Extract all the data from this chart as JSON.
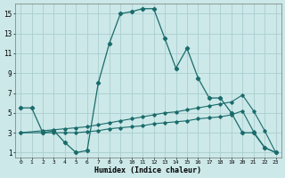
{
  "title": "",
  "xlabel": "Humidex (Indice chaleur)",
  "xlim": [
    -0.5,
    23.5
  ],
  "ylim": [
    0.5,
    16
  ],
  "xticks": [
    0,
    1,
    2,
    3,
    4,
    5,
    6,
    7,
    8,
    9,
    10,
    11,
    12,
    13,
    14,
    15,
    16,
    17,
    18,
    19,
    20,
    21,
    22,
    23
  ],
  "yticks": [
    1,
    3,
    5,
    7,
    9,
    11,
    13,
    15
  ],
  "bg_color": "#cce8e8",
  "grid_color": "#aacece",
  "line_color": "#1a6b6b",
  "line1": {
    "x": [
      0,
      1,
      2,
      3,
      4,
      5,
      6,
      7,
      8,
      9,
      10,
      11,
      12,
      13,
      14,
      15,
      16,
      17,
      18,
      19,
      20,
      21,
      22,
      23
    ],
    "y": [
      5.5,
      5.5,
      3.0,
      3.2,
      2.0,
      1.0,
      1.2,
      8.0,
      12.0,
      15.0,
      15.2,
      15.5,
      15.5,
      12.5,
      9.5,
      11.5,
      8.5,
      6.5,
      6.5,
      5.0,
      3.0,
      3.0,
      1.5,
      1.0
    ]
  },
  "line2": {
    "x": [
      0,
      2,
      3,
      4,
      5,
      6,
      7,
      8,
      9,
      10,
      11,
      12,
      13,
      14,
      15,
      16,
      17,
      18,
      19,
      20,
      21,
      22,
      23
    ],
    "y": [
      3.0,
      3.2,
      3.3,
      3.4,
      3.5,
      3.6,
      3.8,
      4.0,
      4.2,
      4.4,
      4.6,
      4.8,
      5.0,
      5.1,
      5.3,
      5.5,
      5.7,
      5.9,
      6.1,
      6.8,
      5.2,
      3.2,
      1.0
    ]
  },
  "line3": {
    "x": [
      0,
      2,
      3,
      4,
      5,
      6,
      7,
      8,
      9,
      10,
      11,
      12,
      13,
      14,
      15,
      16,
      17,
      18,
      19,
      20,
      21,
      22,
      23
    ],
    "y": [
      3.0,
      3.0,
      3.0,
      3.0,
      3.0,
      3.1,
      3.2,
      3.4,
      3.5,
      3.6,
      3.7,
      3.9,
      4.0,
      4.1,
      4.2,
      4.4,
      4.5,
      4.6,
      4.8,
      5.2,
      3.1,
      1.5,
      1.0
    ]
  }
}
